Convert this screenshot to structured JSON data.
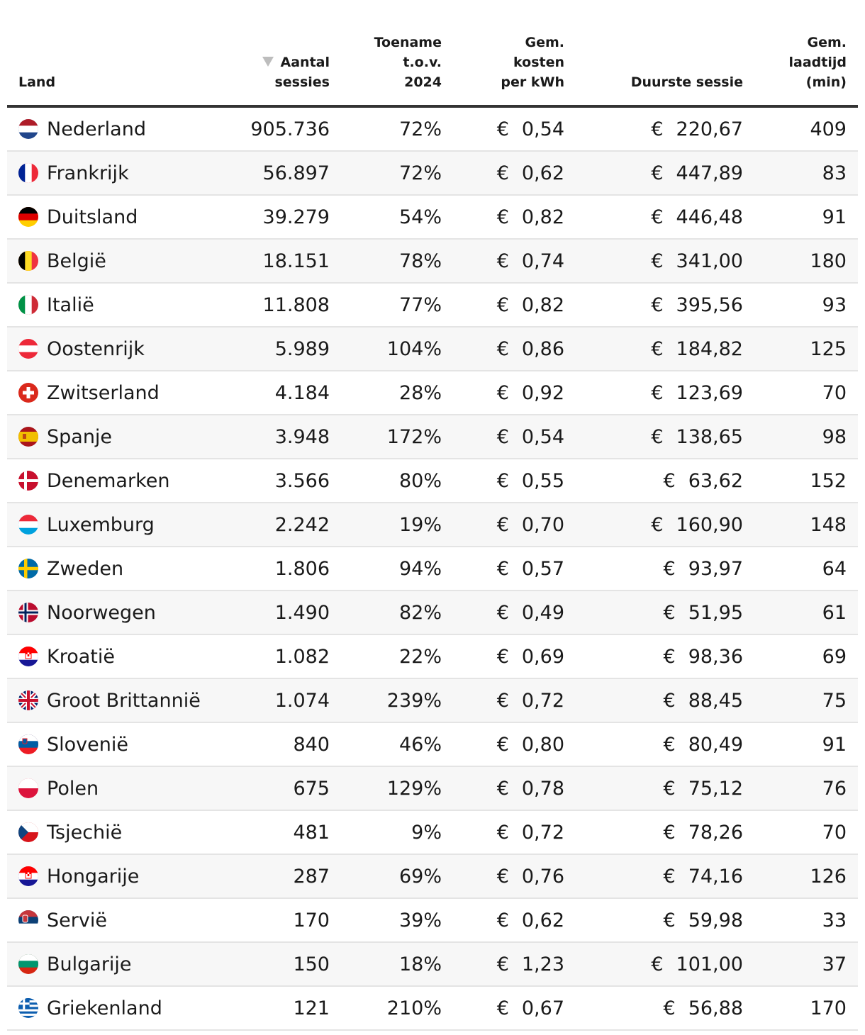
{
  "chart_data": {
    "type": "table",
    "columns": [
      {
        "key": "land",
        "label_lines": [
          "Land"
        ]
      },
      {
        "key": "sessies",
        "label_lines": [
          "Aantal",
          "sessies"
        ],
        "sorted": "descending"
      },
      {
        "key": "toename",
        "label_lines": [
          "Toename",
          "t.o.v.",
          "2024"
        ]
      },
      {
        "key": "kosten",
        "label_lines": [
          "Gem.",
          "kosten",
          "per kWh"
        ]
      },
      {
        "key": "duurste",
        "label_lines": [
          "Duurste sessie"
        ]
      },
      {
        "key": "laadtijd",
        "label_lines": [
          "Gem.",
          "laadtijd",
          "(min)"
        ]
      }
    ],
    "currency_symbol": "€",
    "rows": [
      {
        "flag": "netherlands-flag-icon",
        "land": "Nederland",
        "sessies": "905.736",
        "toename": "72%",
        "kosten": "0,54",
        "duurste": "220,67",
        "laadtijd": "409"
      },
      {
        "flag": "france-flag-icon",
        "land": "Frankrijk",
        "sessies": "56.897",
        "toename": "72%",
        "kosten": "0,62",
        "duurste": "447,89",
        "laadtijd": "83"
      },
      {
        "flag": "germany-flag-icon",
        "land": "Duitsland",
        "sessies": "39.279",
        "toename": "54%",
        "kosten": "0,82",
        "duurste": "446,48",
        "laadtijd": "91"
      },
      {
        "flag": "belgium-flag-icon",
        "land": "België",
        "sessies": "18.151",
        "toename": "78%",
        "kosten": "0,74",
        "duurste": "341,00",
        "laadtijd": "180"
      },
      {
        "flag": "italy-flag-icon",
        "land": "Italië",
        "sessies": "11.808",
        "toename": "77%",
        "kosten": "0,82",
        "duurste": "395,56",
        "laadtijd": "93"
      },
      {
        "flag": "austria-flag-icon",
        "land": "Oostenrijk",
        "sessies": "5.989",
        "toename": "104%",
        "kosten": "0,86",
        "duurste": "184,82",
        "laadtijd": "125"
      },
      {
        "flag": "switzerland-flag-icon",
        "land": "Zwitserland",
        "sessies": "4.184",
        "toename": "28%",
        "kosten": "0,92",
        "duurste": "123,69",
        "laadtijd": "70"
      },
      {
        "flag": "spain-flag-icon",
        "land": "Spanje",
        "sessies": "3.948",
        "toename": "172%",
        "kosten": "0,54",
        "duurste": "138,65",
        "laadtijd": "98"
      },
      {
        "flag": "denmark-flag-icon",
        "land": "Denemarken",
        "sessies": "3.566",
        "toename": "80%",
        "kosten": "0,55",
        "duurste": "63,62",
        "laadtijd": "152"
      },
      {
        "flag": "luxembourg-flag-icon",
        "land": "Luxemburg",
        "sessies": "2.242",
        "toename": "19%",
        "kosten": "0,70",
        "duurste": "160,90",
        "laadtijd": "148"
      },
      {
        "flag": "sweden-flag-icon",
        "land": "Zweden",
        "sessies": "1.806",
        "toename": "94%",
        "kosten": "0,57",
        "duurste": "93,97",
        "laadtijd": "64"
      },
      {
        "flag": "norway-flag-icon",
        "land": "Noorwegen",
        "sessies": "1.490",
        "toename": "82%",
        "kosten": "0,49",
        "duurste": "51,95",
        "laadtijd": "61"
      },
      {
        "flag": "croatia-flag-icon",
        "land": "Kroatië",
        "sessies": "1.082",
        "toename": "22%",
        "kosten": "0,69",
        "duurste": "98,36",
        "laadtijd": "69"
      },
      {
        "flag": "united-kingdom-flag-icon",
        "land": "Groot Brittannië",
        "sessies": "1.074",
        "toename": "239%",
        "kosten": "0,72",
        "duurste": "88,45",
        "laadtijd": "75"
      },
      {
        "flag": "slovenia-flag-icon",
        "land": "Slovenië",
        "sessies": "840",
        "toename": "46%",
        "kosten": "0,80",
        "duurste": "80,49",
        "laadtijd": "91"
      },
      {
        "flag": "poland-flag-icon",
        "land": "Polen",
        "sessies": "675",
        "toename": "129%",
        "kosten": "0,78",
        "duurste": "75,12",
        "laadtijd": "76"
      },
      {
        "flag": "czechia-flag-icon",
        "land": "Tsjechië",
        "sessies": "481",
        "toename": "9%",
        "kosten": "0,72",
        "duurste": "78,26",
        "laadtijd": "70"
      },
      {
        "flag": "hungary-flag-icon",
        "land": "Hongarije",
        "sessies": "287",
        "toename": "69%",
        "kosten": "0,76",
        "duurste": "74,16",
        "laadtijd": "126"
      },
      {
        "flag": "serbia-flag-icon",
        "land": "Servië",
        "sessies": "170",
        "toename": "39%",
        "kosten": "0,62",
        "duurste": "59,98",
        "laadtijd": "33"
      },
      {
        "flag": "bulgaria-flag-icon",
        "land": "Bulgarije",
        "sessies": "150",
        "toename": "18%",
        "kosten": "1,23",
        "duurste": "101,00",
        "laadtijd": "37"
      },
      {
        "flag": "greece-flag-icon",
        "land": "Griekenland",
        "sessies": "121",
        "toename": "210%",
        "kosten": "0,67",
        "duurste": "56,88",
        "laadtijd": "170"
      }
    ]
  },
  "colors": {
    "header_rule": "#333333",
    "row_divider": "#e4e4e4",
    "stripe": "#f7f7f7",
    "sort_indicator": "#bdbdbd"
  }
}
